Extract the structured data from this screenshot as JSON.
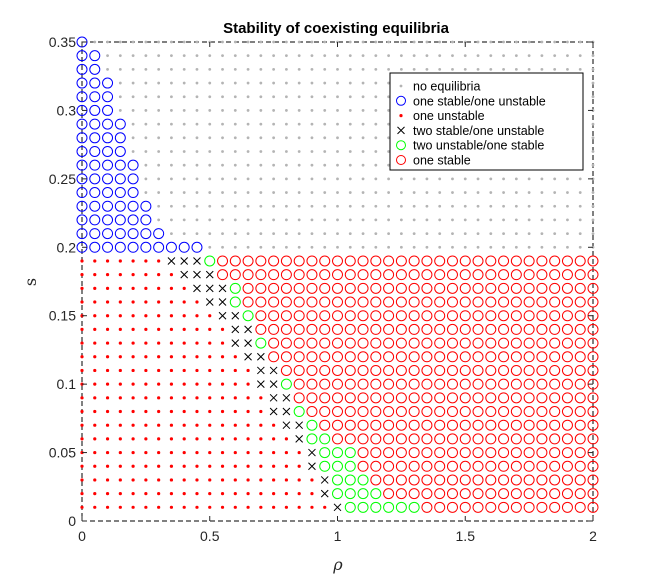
{
  "chart_data": {
    "type": "scatter",
    "title": "Stability of coexisting equilibria",
    "xlabel": "ρ",
    "ylabel": "s",
    "xlim": [
      0,
      2
    ],
    "ylim": [
      0,
      0.35
    ],
    "x_ticks": [
      "0",
      "0.5",
      "1",
      "1.5",
      "2"
    ],
    "y_ticks": [
      "0",
      "0.05",
      "0.1",
      "0.15",
      "0.2",
      "0.25",
      "0.3",
      "0.35"
    ],
    "grid": false,
    "box": true,
    "legend_position": "top-right",
    "grid_sampling": {
      "rho_step": 0.05,
      "s_step": 0.01,
      "rho_range": [
        0,
        2
      ],
      "s_range": [
        0.01,
        0.35
      ]
    },
    "series": [
      {
        "name": "no equilibria",
        "marker": "dot-small",
        "color": "#b4b4b4",
        "region": "s ≥ 0.20 except blue circles; s = 0.19 for ρ ≥ 0.35 is not included"
      },
      {
        "name": "one stable/one unstable",
        "marker": "circle",
        "color": "#0000ff",
        "per_s_max_rho": {
          "0.35": 0.0,
          "0.34": 0.05,
          "0.33": 0.05,
          "0.32": 0.1,
          "0.31": 0.1,
          "0.30": 0.1,
          "0.29": 0.15,
          "0.28": 0.15,
          "0.27": 0.15,
          "0.26": 0.2,
          "0.25": 0.2,
          "0.24": 0.2,
          "0.23": 0.25,
          "0.22": 0.25,
          "0.21": 0.3,
          "0.20": 0.45
        }
      },
      {
        "name": "one unstable",
        "marker": "dot",
        "color": "#ff0000",
        "region": "ρ below the two-stable/one-unstable boundary for s ≤ 0.19"
      },
      {
        "name": "two stable/one unstable",
        "marker": "x",
        "color": "#000000",
        "boundary_by_s": {
          "0.19": [
            0.35,
            0.45
          ],
          "0.18": [
            0.4,
            0.5
          ],
          "0.17": [
            0.45,
            0.55
          ],
          "0.16": [
            0.5,
            0.55
          ],
          "0.15": [
            0.55,
            0.6
          ],
          "0.14": [
            0.6,
            0.65
          ],
          "0.13": [
            0.6,
            0.65
          ],
          "0.12": [
            0.65,
            0.7
          ],
          "0.11": [
            0.7,
            0.75
          ],
          "0.10": [
            0.7,
            0.75
          ],
          "0.09": [
            0.75,
            0.8
          ],
          "0.08": [
            0.75,
            0.8
          ],
          "0.07": [
            0.8,
            0.85
          ],
          "0.06": [
            0.85,
            0.85
          ],
          "0.05": [
            0.9,
            0.9
          ],
          "0.04": [
            0.9,
            0.9
          ],
          "0.03": [
            0.95,
            0.95
          ],
          "0.02": [
            0.95,
            0.95
          ],
          "0.01": [
            1.0,
            1.0
          ]
        }
      },
      {
        "name": "two unstable/one stable",
        "marker": "circle",
        "color": "#00ff00",
        "boundary_by_s": {
          "0.19": [
            0.5,
            0.5
          ],
          "0.17": [
            0.6,
            0.6
          ],
          "0.16": [
            0.6,
            0.6
          ],
          "0.15": [
            0.65,
            0.65
          ],
          "0.14": [
            0.65,
            0.65
          ],
          "0.13": [
            0.7,
            0.7
          ],
          "0.12": [
            0.7,
            0.7
          ],
          "0.11": [
            0.75,
            0.75
          ],
          "0.10": [
            0.8,
            0.8
          ],
          "0.09": [
            0.8,
            0.8
          ],
          "0.08": [
            0.85,
            0.85
          ],
          "0.07": [
            0.9,
            0.9
          ],
          "0.06": [
            0.9,
            0.95
          ],
          "0.05": [
            0.95,
            1.05
          ],
          "0.04": [
            0.95,
            1.05
          ],
          "0.03": [
            1.0,
            1.1
          ],
          "0.02": [
            1.0,
            1.15
          ],
          "0.01": [
            1.05,
            1.3
          ]
        }
      },
      {
        "name": "one stable",
        "marker": "circle",
        "color": "#ff0000",
        "region": "ρ to the right of the green/black boundary up to ρ = 2 for s ≤ 0.19"
      }
    ]
  }
}
